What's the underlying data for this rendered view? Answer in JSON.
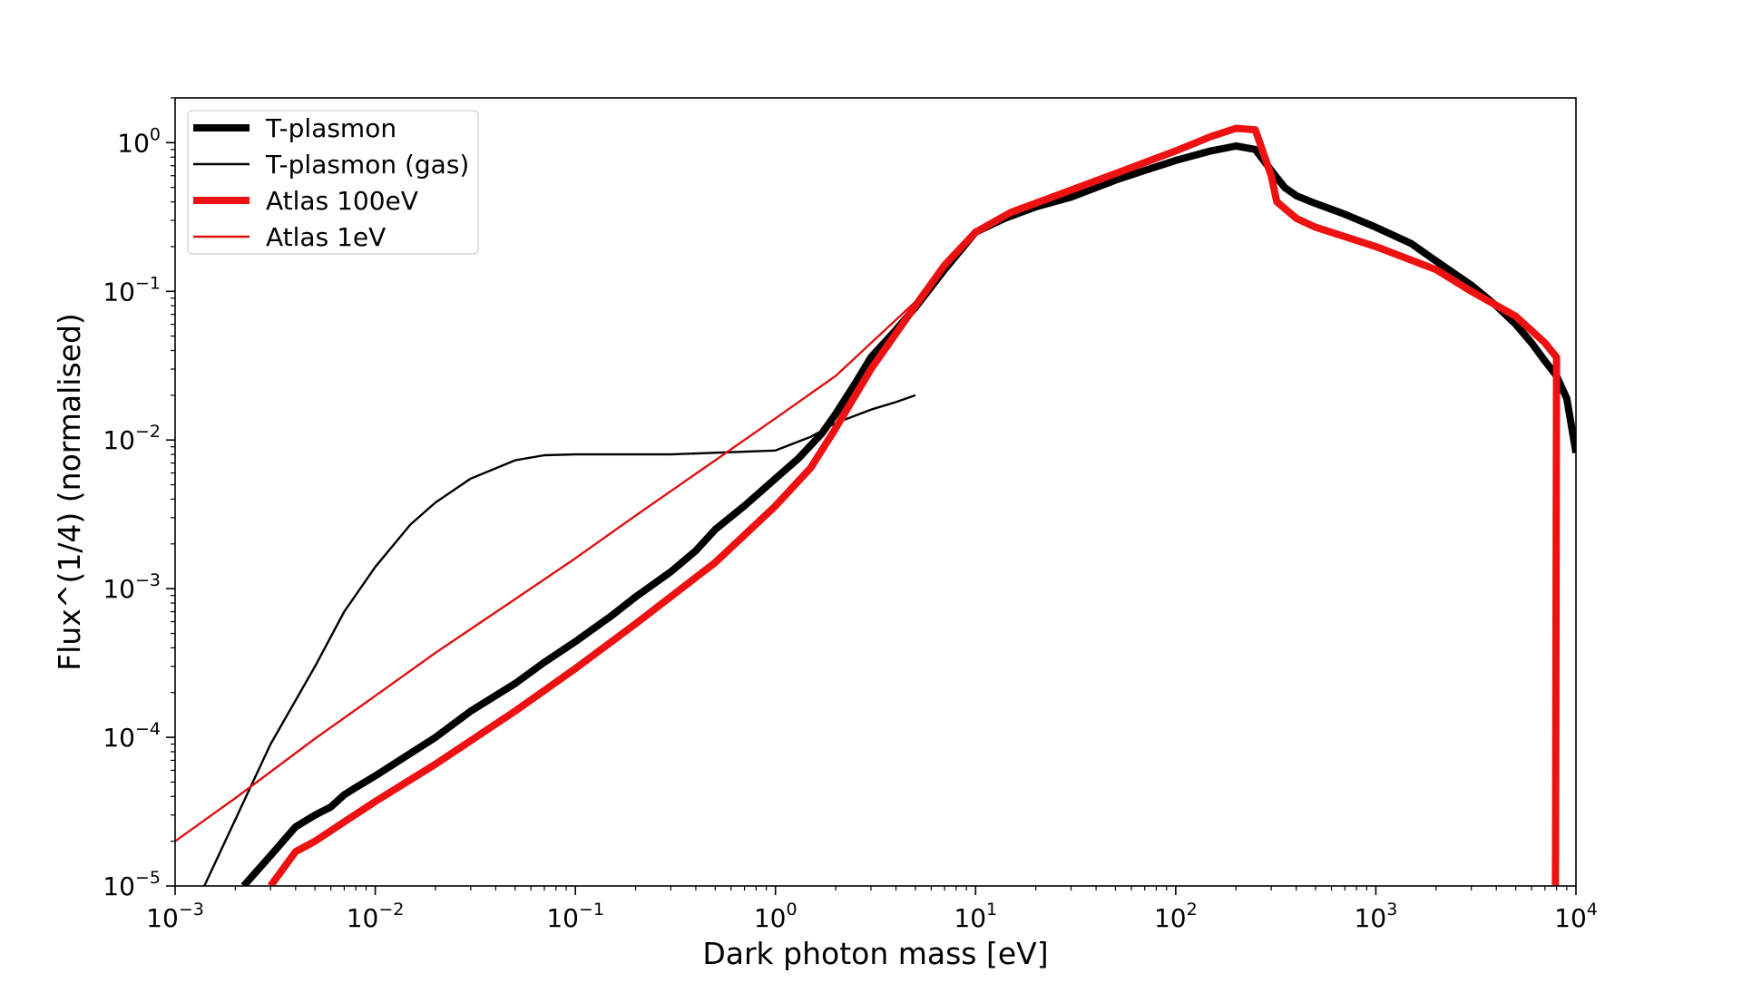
{
  "chart_data": {
    "type": "line",
    "title": "",
    "xlabel": "Dark photon mass [eV]",
    "ylabel": "Flux^(1/4) (normalised)",
    "x_scale": "log",
    "y_scale": "log",
    "xlim": [
      0.001,
      10000
    ],
    "ylim": [
      1e-05,
      2
    ],
    "x_ticks": [
      {
        "value": 0.001,
        "base": "10",
        "exp": "−3"
      },
      {
        "value": 0.01,
        "base": "10",
        "exp": "−2"
      },
      {
        "value": 0.1,
        "base": "10",
        "exp": "−1"
      },
      {
        "value": 1,
        "base": "10",
        "exp": "0"
      },
      {
        "value": 10,
        "base": "10",
        "exp": "1"
      },
      {
        "value": 100,
        "base": "10",
        "exp": "2"
      },
      {
        "value": 1000,
        "base": "10",
        "exp": "3"
      },
      {
        "value": 10000,
        "base": "10",
        "exp": "4"
      }
    ],
    "y_ticks": [
      {
        "value": 1e-05,
        "base": "10",
        "exp": "−5"
      },
      {
        "value": 0.0001,
        "base": "10",
        "exp": "−4"
      },
      {
        "value": 0.001,
        "base": "10",
        "exp": "−3"
      },
      {
        "value": 0.01,
        "base": "10",
        "exp": "−2"
      },
      {
        "value": 0.1,
        "base": "10",
        "exp": "−1"
      },
      {
        "value": 1,
        "base": "10",
        "exp": "0"
      }
    ],
    "grid": false,
    "legend_position": "top-left",
    "series": [
      {
        "name": "T-plasmon",
        "color": "#000000",
        "weight": "thick",
        "points": [
          [
            0.0022,
            1e-05
          ],
          [
            0.003,
            1.6e-05
          ],
          [
            0.004,
            2.5e-05
          ],
          [
            0.005,
            3e-05
          ],
          [
            0.006,
            3.4e-05
          ],
          [
            0.007,
            4.1e-05
          ],
          [
            0.008,
            4.6e-05
          ],
          [
            0.01,
            5.5e-05
          ],
          [
            0.015,
            7.8e-05
          ],
          [
            0.02,
            0.0001
          ],
          [
            0.03,
            0.00015
          ],
          [
            0.05,
            0.00023
          ],
          [
            0.07,
            0.00032
          ],
          [
            0.1,
            0.00044
          ],
          [
            0.15,
            0.00065
          ],
          [
            0.2,
            0.00088
          ],
          [
            0.3,
            0.0013
          ],
          [
            0.4,
            0.0018
          ],
          [
            0.5,
            0.0025
          ],
          [
            0.7,
            0.0036
          ],
          [
            1.0,
            0.0055
          ],
          [
            1.3,
            0.0075
          ],
          [
            1.7,
            0.011
          ],
          [
            2.0,
            0.015
          ],
          [
            2.5,
            0.024
          ],
          [
            3.0,
            0.036
          ],
          [
            4.0,
            0.055
          ],
          [
            5.0,
            0.078
          ],
          [
            7.0,
            0.14
          ],
          [
            10.0,
            0.25
          ],
          [
            14.0,
            0.31
          ],
          [
            20.0,
            0.37
          ],
          [
            30.0,
            0.43
          ],
          [
            50.0,
            0.56
          ],
          [
            70.0,
            0.65
          ],
          [
            100.0,
            0.76
          ],
          [
            150.0,
            0.88
          ],
          [
            200.0,
            0.95
          ],
          [
            250.0,
            0.9
          ],
          [
            300.0,
            0.65
          ],
          [
            350.0,
            0.5
          ],
          [
            400.0,
            0.44
          ],
          [
            500.0,
            0.39
          ],
          [
            700.0,
            0.33
          ],
          [
            1000.0,
            0.27
          ],
          [
            1500.0,
            0.21
          ],
          [
            2000.0,
            0.16
          ],
          [
            3000.0,
            0.11
          ],
          [
            4000.0,
            0.08
          ],
          [
            5000.0,
            0.06
          ],
          [
            6000.0,
            0.045
          ],
          [
            7000.0,
            0.034
          ],
          [
            8000.0,
            0.027
          ],
          [
            9000.0,
            0.019
          ],
          [
            10000.0,
            0.0082
          ]
        ]
      },
      {
        "name": "T-plasmon (gas)",
        "color": "#000000",
        "weight": "thin",
        "points": [
          [
            0.0014,
            1e-05
          ],
          [
            0.002,
            2.8e-05
          ],
          [
            0.003,
            9e-05
          ],
          [
            0.005,
            0.0003
          ],
          [
            0.007,
            0.0007
          ],
          [
            0.01,
            0.0014
          ],
          [
            0.015,
            0.0027
          ],
          [
            0.02,
            0.0038
          ],
          [
            0.03,
            0.0055
          ],
          [
            0.05,
            0.0073
          ],
          [
            0.07,
            0.0079
          ],
          [
            0.1,
            0.008
          ],
          [
            0.3,
            0.008
          ],
          [
            1.0,
            0.0085
          ],
          [
            1.5,
            0.0105
          ],
          [
            2.0,
            0.013
          ],
          [
            3.0,
            0.016
          ],
          [
            4.0,
            0.018
          ],
          [
            5.0,
            0.02
          ]
        ]
      },
      {
        "name": "Atlas 100eV",
        "color": "#ee1111",
        "weight": "thick",
        "points": [
          [
            0.003,
            1e-05
          ],
          [
            0.004,
            1.7e-05
          ],
          [
            0.005,
            2e-05
          ],
          [
            0.007,
            2.7e-05
          ],
          [
            0.01,
            3.7e-05
          ],
          [
            0.02,
            6.6e-05
          ],
          [
            0.05,
            0.00015
          ],
          [
            0.1,
            0.00029
          ],
          [
            0.2,
            0.00058
          ],
          [
            0.5,
            0.0015
          ],
          [
            1.0,
            0.0036
          ],
          [
            1.5,
            0.0065
          ],
          [
            2.0,
            0.012
          ],
          [
            3.0,
            0.03
          ],
          [
            5.0,
            0.08
          ],
          [
            7.0,
            0.15
          ],
          [
            10.0,
            0.25
          ],
          [
            15.0,
            0.34
          ],
          [
            30.0,
            0.48
          ],
          [
            50.0,
            0.62
          ],
          [
            100.0,
            0.88
          ],
          [
            150.0,
            1.1
          ],
          [
            200.0,
            1.25
          ],
          [
            250.0,
            1.22
          ],
          [
            300.0,
            0.6
          ],
          [
            320.0,
            0.4
          ],
          [
            400.0,
            0.31
          ],
          [
            500.0,
            0.27
          ],
          [
            1000.0,
            0.2
          ],
          [
            2000.0,
            0.14
          ],
          [
            3000.0,
            0.1
          ],
          [
            5000.0,
            0.068
          ],
          [
            7000.0,
            0.045
          ],
          [
            8000.0,
            0.036
          ],
          [
            7900.0,
            1e-05
          ]
        ]
      },
      {
        "name": "Atlas 1eV",
        "color": "#dd1111",
        "weight": "thin",
        "points": [
          [
            0.001,
            2e-05
          ],
          [
            0.002,
            3.9e-05
          ],
          [
            0.005,
            9.8e-05
          ],
          [
            0.01,
            0.00019
          ],
          [
            0.02,
            0.00037
          ],
          [
            0.05,
            0.00085
          ],
          [
            0.1,
            0.0016
          ],
          [
            0.2,
            0.0031
          ],
          [
            0.5,
            0.0073
          ],
          [
            1.0,
            0.014
          ],
          [
            2.0,
            0.027
          ],
          [
            5.0,
            0.085
          ],
          [
            7.0,
            0.14
          ],
          [
            10.0,
            0.25
          ],
          [
            14.0,
            0.32
          ]
        ]
      }
    ]
  }
}
